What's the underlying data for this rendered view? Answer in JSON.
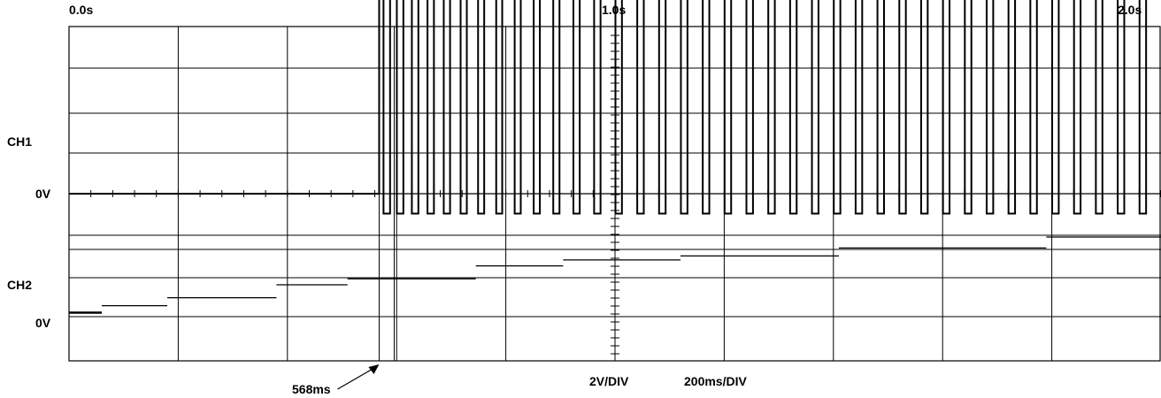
{
  "chart_data": {
    "type": "line",
    "title": "",
    "time_labels": {
      "start": "0.0s",
      "mid": "1.0s",
      "end": "2.0s"
    },
    "xlim": [
      0,
      2000
    ],
    "x_unit": "ms",
    "divisions": 10,
    "grid": true,
    "volts_per_div": 2,
    "scale_labels": {
      "volts": "2V/DIV",
      "time": "200ms/DIV"
    },
    "marker": {
      "label": "568ms",
      "time_ms": 568
    },
    "series": [
      {
        "name": "CH1",
        "zero_label": "0V",
        "kind": "square_wave",
        "idle_until_ms": 568,
        "low_v": -1,
        "high_v": 10.8,
        "cycles": [
          {
            "t_ms": 568,
            "period_ms": 20,
            "high_ms": 8
          },
          {
            "t_ms": 600,
            "period_ms": 27,
            "high_ms": 15
          },
          {
            "t_ms": 760,
            "period_ms": 33,
            "high_ms": 22
          },
          {
            "t_ms": 1000,
            "period_ms": 40,
            "high_ms": 28
          },
          {
            "t_ms": 1400,
            "period_ms": 40,
            "high_ms": 28
          },
          {
            "t_ms": 2000,
            "period_ms": 40,
            "high_ms": 28
          }
        ]
      },
      {
        "name": "CH2",
        "zero_label": "0V",
        "kind": "staircase",
        "steps": [
          {
            "t0": 0,
            "t1": 60,
            "v": 0.2
          },
          {
            "t0": 60,
            "t1": 180,
            "v": 0.55
          },
          {
            "t0": 180,
            "t1": 380,
            "v": 0.95
          },
          {
            "t0": 380,
            "t1": 510,
            "v": 1.6
          },
          {
            "t0": 510,
            "t1": 745,
            "v": 1.9
          },
          {
            "t0": 745,
            "t1": 905,
            "v": 2.55
          },
          {
            "t0": 905,
            "t1": 1120,
            "v": 2.85
          },
          {
            "t0": 1120,
            "t1": 1410,
            "v": 3.05
          },
          {
            "t0": 1410,
            "t1": 1790,
            "v": 3.45
          },
          {
            "t0": 1790,
            "t1": 2000,
            "v": 4.0
          }
        ]
      }
    ]
  }
}
